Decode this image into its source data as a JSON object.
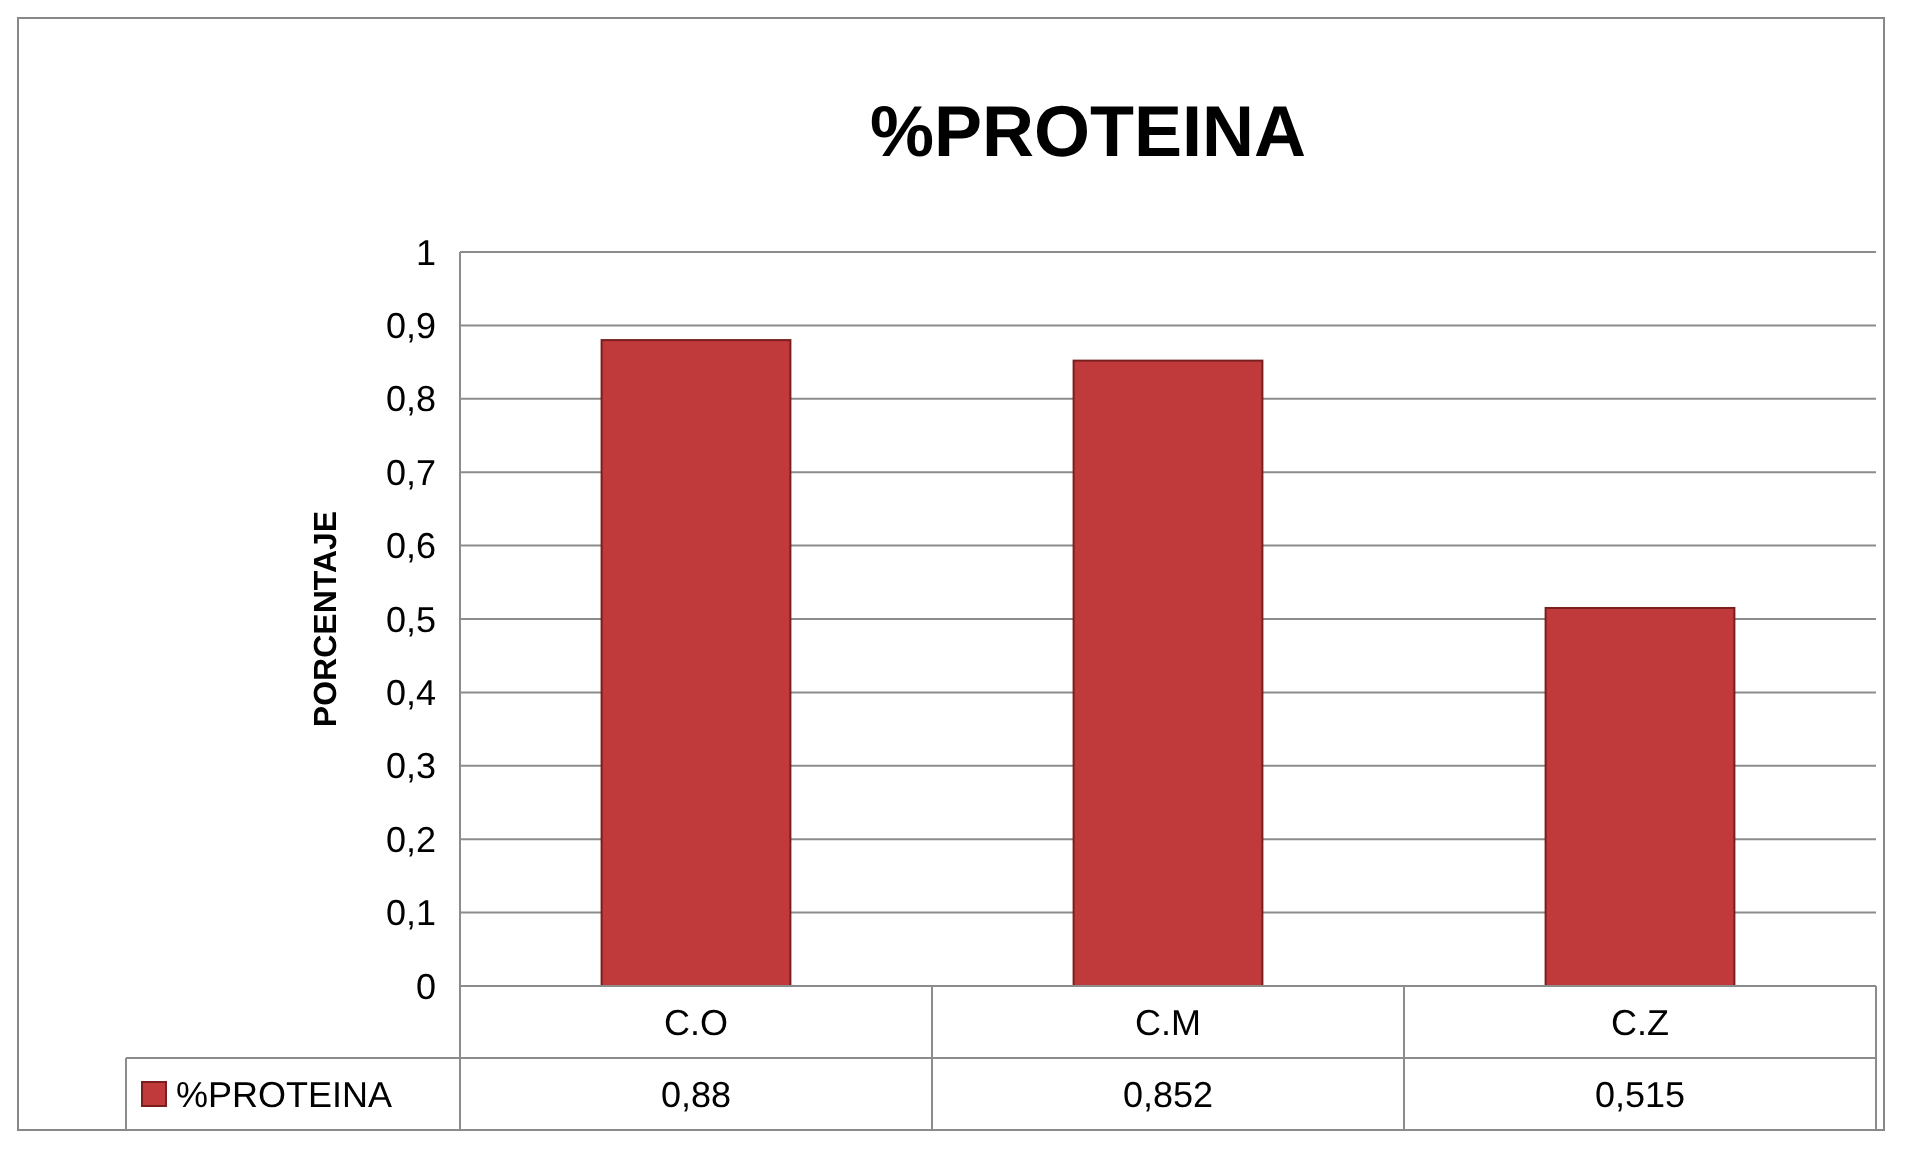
{
  "chart_data": {
    "type": "bar",
    "title": "%PROTEINA",
    "ylabel": "PORCENTAJE",
    "categories": [
      "C.O",
      "C.M",
      "C.Z"
    ],
    "series": [
      {
        "name": "%PROTEINA",
        "color": "#c0393b",
        "values": [
          0.88,
          0.852,
          0.515
        ],
        "value_labels": [
          "0,88",
          "0,852",
          "0,515"
        ]
      }
    ],
    "ylim": [
      0,
      1
    ],
    "yticks": [
      0,
      {
        "value": 0.1,
        "label": "0,1"
      },
      {
        "value": 0.2,
        "label": "0,2"
      },
      {
        "value": 0.3,
        "label": "0,3"
      },
      {
        "value": 0.4,
        "label": "0,4"
      },
      {
        "value": 0.5,
        "label": "0,5"
      },
      {
        "value": 0.6,
        "label": "0,6"
      },
      {
        "value": 0.7,
        "label": "0,7"
      },
      {
        "value": 0.8,
        "label": "0,8"
      },
      {
        "value": 0.9,
        "label": "0,9"
      },
      1
    ],
    "grid": "y",
    "legend": "bottom"
  }
}
